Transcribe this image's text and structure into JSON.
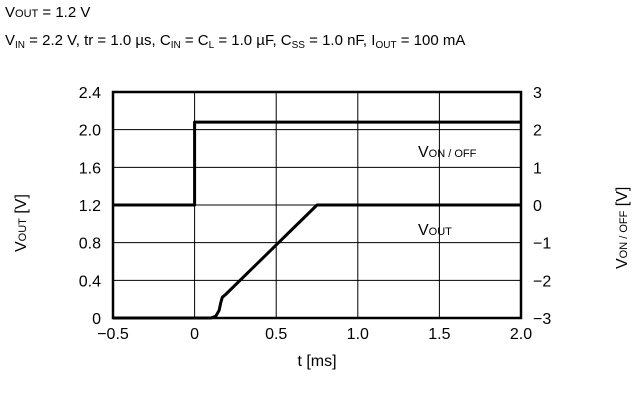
{
  "header": {
    "line1": {
      "v": "V",
      "sub": "OUT",
      "rest": " = 1.2 V"
    },
    "line2": [
      {
        "t": "V"
      },
      {
        "s": "IN"
      },
      {
        "t": " = 2.2 V, tr = 1.0 µs, C"
      },
      {
        "s": "IN"
      },
      {
        "t": " = C"
      },
      {
        "s": "L"
      },
      {
        "t": " = 1.0 µF, C"
      },
      {
        "s": "SS"
      },
      {
        "t": " = 1.0 nF, I"
      },
      {
        "s": "OUT"
      },
      {
        "t": " = 100 mA"
      }
    ]
  },
  "chart_data": {
    "type": "line",
    "title": "",
    "xlabel": "t [ms]",
    "ylabel_left": {
      "main": "V",
      "sub": "OUT",
      "unit": " [V]"
    },
    "ylabel_right": {
      "main": "V",
      "sub": "ON / OFF",
      "unit": " [V]"
    },
    "x_range": [
      -0.5,
      2.0
    ],
    "x_ticks": [
      "−0.5",
      "0",
      "0.5",
      "1.0",
      "1.5",
      "2.0"
    ],
    "x_tick_values": [
      -0.5,
      0,
      0.5,
      1.0,
      1.5,
      2.0
    ],
    "y_left_range": [
      0,
      2.4
    ],
    "y_left_ticks": [
      "0",
      "0.4",
      "0.8",
      "1.2",
      "1.6",
      "2.0",
      "2.4"
    ],
    "y_left_tick_values": [
      0,
      0.4,
      0.8,
      1.2,
      1.6,
      2.0,
      2.4
    ],
    "y_right_range": [
      -3,
      3
    ],
    "y_right_ticks": [
      "−3",
      "−2",
      "−1",
      "0",
      "1",
      "2",
      "3"
    ],
    "y_right_tick_values": [
      -3,
      -2,
      -1,
      0,
      1,
      2,
      3
    ],
    "grid": true,
    "color": "#000000",
    "series": [
      {
        "name": "VON / OFF",
        "label": {
          "main": "V",
          "sub": "ON / OFF"
        },
        "axis": "right",
        "x": [
          -0.5,
          0.0,
          0.0,
          2.0
        ],
        "y": [
          0.0,
          0.0,
          2.2,
          2.2
        ]
      },
      {
        "name": "VOUT",
        "label": {
          "main": "V",
          "sub": "OUT"
        },
        "axis": "left",
        "x": [
          -0.5,
          0.1,
          0.13,
          0.15,
          0.16,
          0.17,
          0.19,
          0.75,
          2.0
        ],
        "y": [
          0.0,
          0.0,
          0.02,
          0.08,
          0.16,
          0.22,
          0.25,
          1.2,
          1.2
        ]
      }
    ]
  }
}
